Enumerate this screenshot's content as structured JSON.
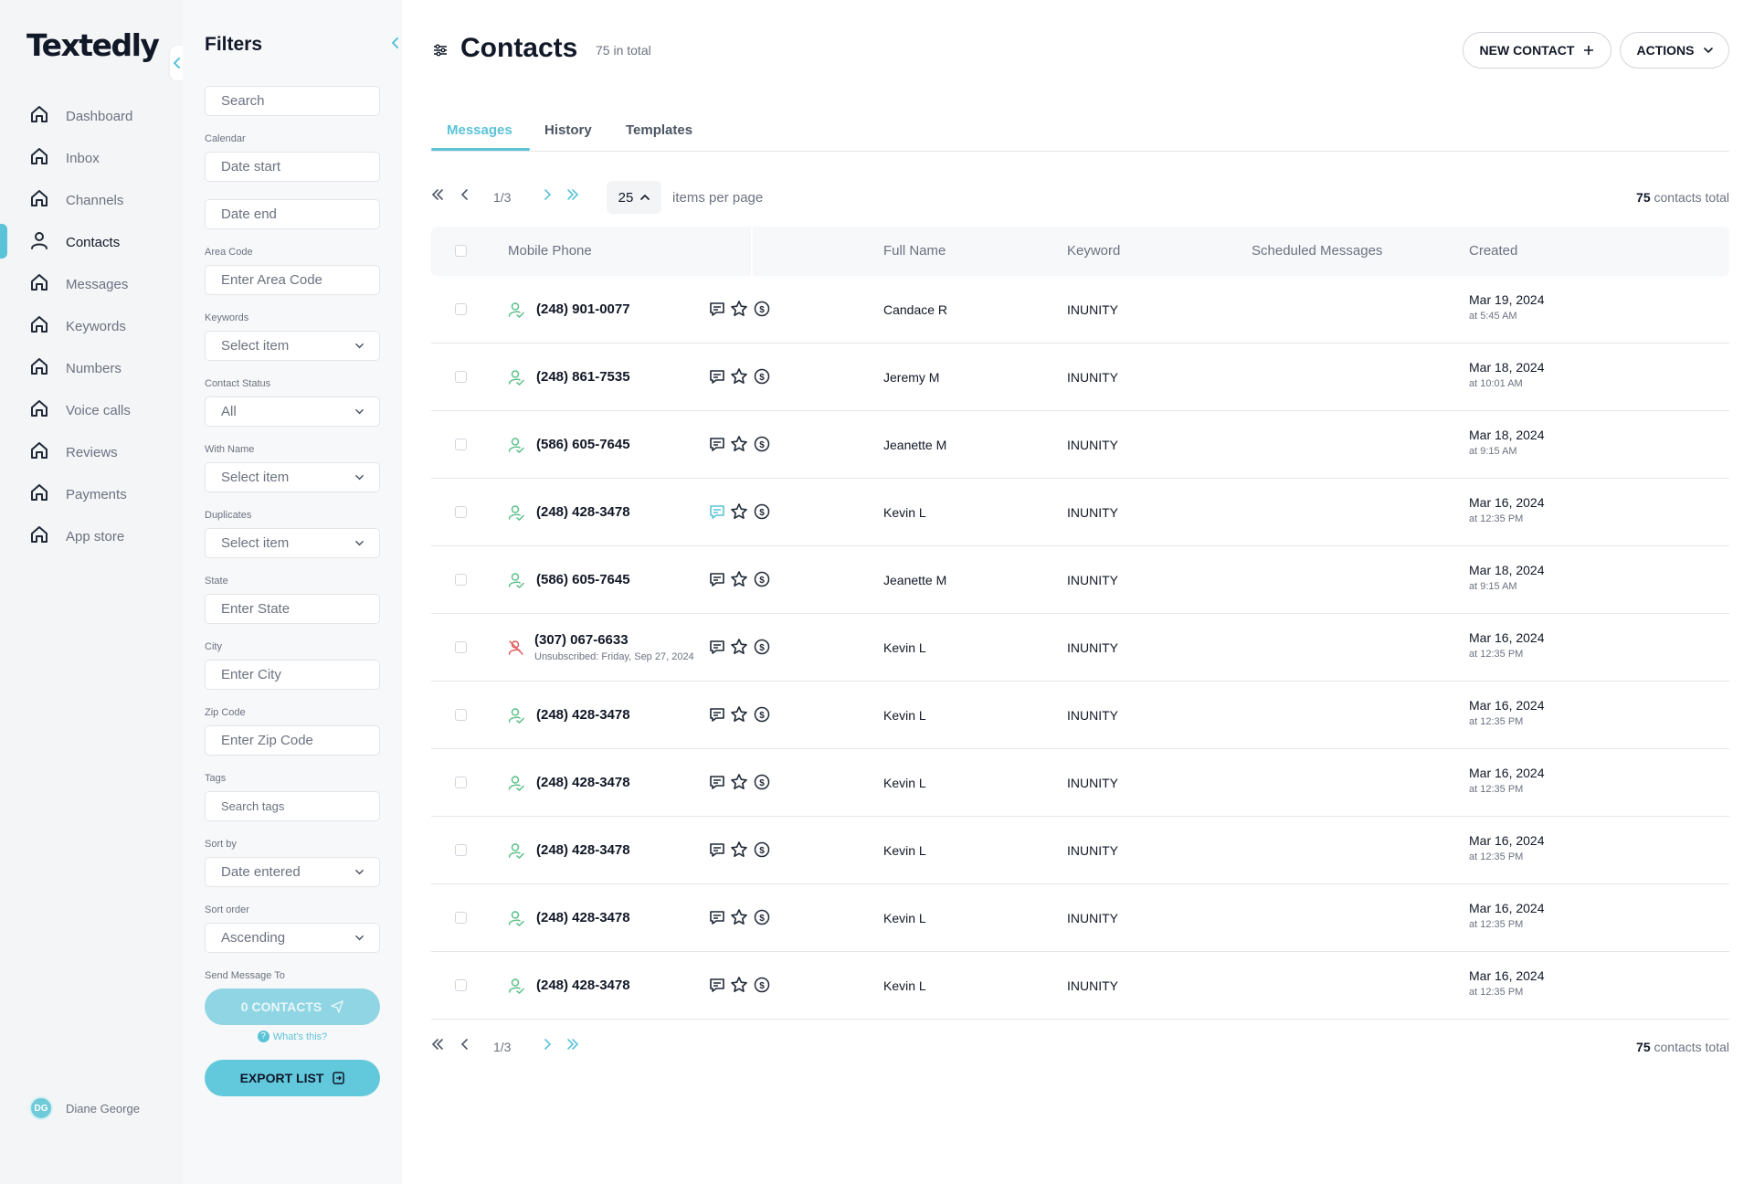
{
  "app": {
    "logo": "Textedly"
  },
  "nav": {
    "items": [
      {
        "label": "Dashboard",
        "icon": "home-icon",
        "active": false
      },
      {
        "label": "Inbox",
        "icon": "home-icon",
        "active": false
      },
      {
        "label": "Channels",
        "icon": "home-icon",
        "active": false
      },
      {
        "label": "Contacts",
        "icon": "user-icon",
        "active": true
      },
      {
        "label": "Messages",
        "icon": "home-icon",
        "active": false
      },
      {
        "label": "Keywords",
        "icon": "home-icon",
        "active": false
      },
      {
        "label": "Numbers",
        "icon": "home-icon",
        "active": false
      },
      {
        "label": "Voice calls",
        "icon": "home-icon",
        "active": false
      },
      {
        "label": "Reviews",
        "icon": "home-icon",
        "active": false
      },
      {
        "label": "Payments",
        "icon": "home-icon",
        "active": false
      },
      {
        "label": "App store",
        "icon": "home-icon",
        "active": false
      }
    ],
    "user": {
      "initials": "DG",
      "name": "Diane George"
    }
  },
  "filters": {
    "title": "Filters",
    "search_placeholder": "Search",
    "calendar_label": "Calendar",
    "date_start_placeholder": "Date start",
    "date_end_placeholder": "Date end",
    "area_code_label": "Area Code",
    "area_code_placeholder": "Enter Area Code",
    "keywords_label": "Keywords",
    "keywords_value": "Select item",
    "contact_status_label": "Contact Status",
    "contact_status_value": "All",
    "with_name_label": "With Name",
    "with_name_value": "Select item",
    "duplicates_label": "Duplicates",
    "duplicates_value": "Select item",
    "state_label": "State",
    "state_placeholder": "Enter State",
    "city_label": "City",
    "city_placeholder": "Enter City",
    "zip_label": "Zip Code",
    "zip_placeholder": "Enter Zip Code",
    "tags_label": "Tags",
    "tags_placeholder": "Search tags",
    "sort_by_label": "Sort by",
    "sort_by_value": "Date entered",
    "sort_order_label": "Sort order",
    "sort_order_value": "Ascending",
    "send_label": "Send Message To",
    "send_button": "0 CONTACTS",
    "whats_this": "What's this?",
    "export_button": "EXPORT LIST"
  },
  "header": {
    "title": "Contacts",
    "count": "75 in total",
    "new_contact": "NEW CONTACT",
    "actions": "ACTIONS"
  },
  "tabs": [
    "Messages",
    "History",
    "Templates"
  ],
  "active_tab": "Messages",
  "pagination": {
    "page": "1/3",
    "per_page": "25",
    "per_page_label": "items per page",
    "total_number": "75",
    "total_label": "contacts total"
  },
  "table": {
    "columns": [
      "Mobile Phone",
      "Full Name",
      "Keyword",
      "Scheduled Messages",
      "Created"
    ],
    "rows": [
      {
        "phone": "(248) 901-0077",
        "status": "subscribed",
        "name": "Candace R",
        "keyword": "INUNITY",
        "scheduled": "",
        "date": "Mar 19, 2024",
        "time": "at 5:45 AM",
        "msg_highlight": false
      },
      {
        "phone": "(248) 861-7535",
        "status": "subscribed",
        "name": "Jeremy M",
        "keyword": "INUNITY",
        "scheduled": "",
        "date": "Mar 18, 2024",
        "time": "at 10:01 AM",
        "msg_highlight": false
      },
      {
        "phone": "(586) 605-7645",
        "status": "subscribed",
        "name": "Jeanette M",
        "keyword": "INUNITY",
        "scheduled": "",
        "date": "Mar 18, 2024",
        "time": "at 9:15 AM",
        "msg_highlight": false
      },
      {
        "phone": "(248) 428-3478",
        "status": "subscribed",
        "name": "Kevin L",
        "keyword": "INUNITY",
        "scheduled": "",
        "date": "Mar 16, 2024",
        "time": "at 12:35 PM",
        "msg_highlight": true
      },
      {
        "phone": "(586) 605-7645",
        "status": "subscribed",
        "name": "Jeanette M",
        "keyword": "INUNITY",
        "scheduled": "",
        "date": "Mar 18, 2024",
        "time": "at 9:15 AM",
        "msg_highlight": false
      },
      {
        "phone": "(307) 067-6633",
        "status": "unsubscribed",
        "unsub_text": "Unsubscribed: Friday, Sep 27, 2024",
        "name": "Kevin L",
        "keyword": "INUNITY",
        "scheduled": "",
        "date": "Mar 16, 2024",
        "time": "at 12:35 PM",
        "msg_highlight": false
      },
      {
        "phone": "(248) 428-3478",
        "status": "subscribed",
        "name": "Kevin L",
        "keyword": "INUNITY",
        "scheduled": "",
        "date": "Mar 16, 2024",
        "time": "at 12:35 PM",
        "msg_highlight": false
      },
      {
        "phone": "(248) 428-3478",
        "status": "subscribed",
        "name": "Kevin L",
        "keyword": "INUNITY",
        "scheduled": "",
        "date": "Mar 16, 2024",
        "time": "at 12:35 PM",
        "msg_highlight": false
      },
      {
        "phone": "(248) 428-3478",
        "status": "subscribed",
        "name": "Kevin L",
        "keyword": "INUNITY",
        "scheduled": "",
        "date": "Mar 16, 2024",
        "time": "at 12:35 PM",
        "msg_highlight": false
      },
      {
        "phone": "(248) 428-3478",
        "status": "subscribed",
        "name": "Kevin L",
        "keyword": "INUNITY",
        "scheduled": "",
        "date": "Mar 16, 2024",
        "time": "at 12:35 PM",
        "msg_highlight": false
      },
      {
        "phone": "(248) 428-3478",
        "status": "subscribed",
        "name": "Kevin L",
        "keyword": "INUNITY",
        "scheduled": "",
        "date": "Mar 16, 2024",
        "time": "at 12:35 PM",
        "msg_highlight": false
      }
    ]
  },
  "colors": {
    "accent": "#5bc3d7",
    "subscribed": "#5cc08a",
    "unsubscribed": "#e25b5b"
  }
}
